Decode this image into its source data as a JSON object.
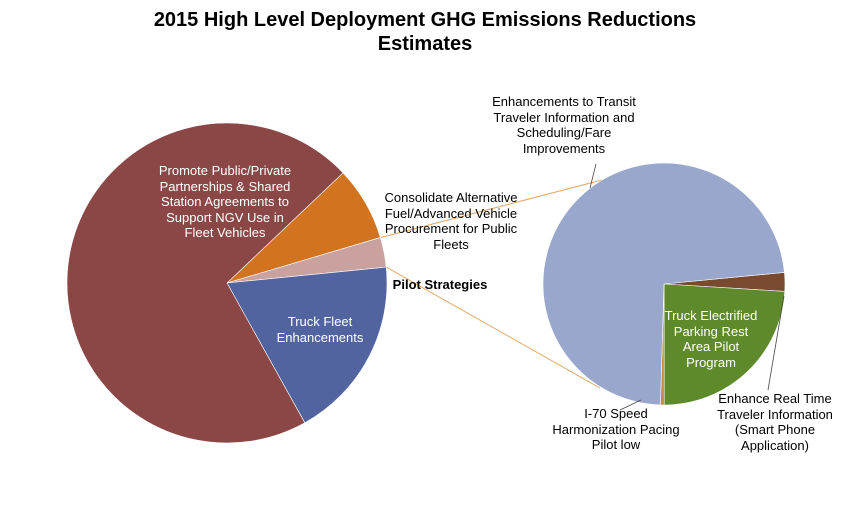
{
  "chart_data": [
    {
      "type": "pie",
      "title": [
        "2015 High Level Deployment GHG Emissions Reductions",
        "Estimates"
      ],
      "slices": [
        {
          "label": [
            "Consolidate Alternative",
            "Fuel/Advanced Vehicle",
            "Procurement for Public",
            "Fleets"
          ],
          "value": 7.5,
          "color": "#D2731F"
        },
        {
          "label": [
            "Pilot Strategies"
          ],
          "value": 3.0,
          "color": "#C9A19F"
        },
        {
          "label": [
            "Truck Fleet",
            "Enhancements"
          ],
          "value": 18.5,
          "color": "#52649F"
        },
        {
          "label": [
            "Promote Public/Private",
            "Partnerships & Shared",
            "Station Agreements to",
            "Support NGV Use in",
            "Fleet Vehicles"
          ],
          "value": 71.0,
          "color": "#8B4646"
        }
      ]
    },
    {
      "type": "pie",
      "title": "",
      "slices": [
        {
          "label": [
            "Enhance Real Time",
            "Traveler Information",
            "(Smart Phone",
            "Application)"
          ],
          "value": 2.5,
          "color": "#7A4A30"
        },
        {
          "label": [
            "Truck Electrified",
            "Parking Rest",
            "Area Pilot",
            "Program"
          ],
          "value": 24.0,
          "color": "#5E8A2C"
        },
        {
          "label": [
            "I-70 Speed",
            "Harmonization Pacing",
            "Pilot low"
          ],
          "value": 0.5,
          "color": "#C08A4A"
        },
        {
          "label": [
            "Enhancements to Transit",
            "Traveler Information and",
            "Scheduling/Fare",
            "Improvements"
          ],
          "value": 73.0,
          "color": "#9AA7CC"
        }
      ]
    }
  ]
}
